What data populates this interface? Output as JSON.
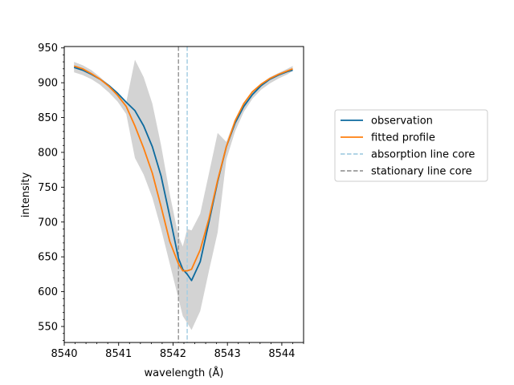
{
  "chart_data": {
    "type": "line",
    "xlabel": "wavelength (Å)",
    "ylabel": "intensity",
    "xlim": [
      8540.0,
      8544.4
    ],
    "ylim": [
      527,
      952
    ],
    "xticks": [
      8540,
      8541,
      8542,
      8543,
      8544
    ],
    "yticks": [
      550,
      600,
      650,
      700,
      750,
      800,
      850,
      900,
      950
    ],
    "grid": false,
    "legend_position": "right, outside plot",
    "x": [
      8540.18,
      8540.34,
      8540.5,
      8540.66,
      8540.82,
      8540.98,
      8541.14,
      8541.3,
      8541.46,
      8541.62,
      8541.78,
      8541.94,
      8542.1,
      8542.18,
      8542.26,
      8542.34,
      8542.5,
      8542.66,
      8542.82,
      8542.98,
      8543.14,
      8543.3,
      8543.46,
      8543.62,
      8543.78,
      8543.94,
      8544.1,
      8544.2
    ],
    "band": {
      "name": "spread",
      "color": "#d3d3d3",
      "upper": [
        930,
        925,
        918,
        908,
        897,
        885,
        872,
        933,
        908,
        870,
        810,
        740,
        680,
        665,
        690,
        688,
        712,
        770,
        828,
        815,
        848,
        872,
        888,
        899,
        908,
        914,
        920,
        924
      ],
      "lower": [
        915,
        911,
        905,
        897,
        886,
        873,
        855,
        792,
        768,
        735,
        690,
        640,
        590,
        565,
        555,
        545,
        572,
        630,
        685,
        790,
        830,
        858,
        877,
        890,
        899,
        906,
        912,
        917
      ]
    },
    "series": [
      {
        "name": "observation",
        "color": "#0c6a9e",
        "values": [
          922,
          918,
          912,
          905,
          896,
          885,
          872,
          860,
          838,
          808,
          766,
          708,
          648,
          632,
          625,
          616,
          643,
          700,
          758,
          808,
          842,
          866,
          883,
          896,
          905,
          911,
          916,
          918
        ]
      },
      {
        "name": "fitted profile",
        "color": "#ff7f0e",
        "values": [
          924,
          920,
          913,
          905,
          895,
          882,
          866,
          838,
          806,
          770,
          722,
          672,
          640,
          630,
          630,
          632,
          660,
          705,
          760,
          808,
          845,
          870,
          887,
          898,
          906,
          912,
          917,
          920
        ]
      }
    ],
    "vlines": [
      {
        "name": "absorption line core",
        "x": 8542.26,
        "color": "#a6cee3",
        "style": "dashed"
      },
      {
        "name": "stationary line core",
        "x": 8542.1,
        "color": "#999999",
        "style": "dashed"
      }
    ],
    "legend": [
      "observation",
      "fitted profile",
      "absorption line core",
      "stationary line core"
    ]
  }
}
